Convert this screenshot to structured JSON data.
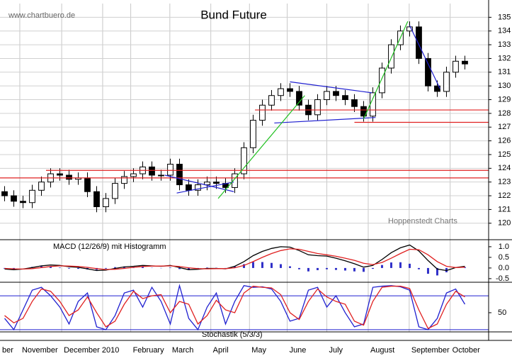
{
  "chart_data": [
    {
      "type": "candlestick",
      "title": "Bund Future",
      "source": "www.chartbuero.de",
      "annotation": "Hoppenstedt Charts",
      "x": [
        0,
        1,
        2,
        3,
        4,
        5,
        6,
        7,
        8,
        9,
        10,
        11,
        12,
        13,
        14,
        15,
        16,
        17,
        18,
        19,
        20,
        21,
        22,
        23,
        24,
        25,
        26,
        27,
        28,
        29,
        30,
        31,
        32,
        33,
        34,
        35,
        36,
        37,
        38,
        39,
        40,
        41,
        42,
        43,
        44,
        45,
        46,
        47,
        48,
        49,
        50
      ],
      "open": [
        122.3,
        122.0,
        121.6,
        121.5,
        122.4,
        123.0,
        123.6,
        123.5,
        123.2,
        123.3,
        122.3,
        121.2,
        121.8,
        122.9,
        123.4,
        123.6,
        124.1,
        123.5,
        123.5,
        124.3,
        122.8,
        122.4,
        122.8,
        123.0,
        122.9,
        122.6,
        123.6,
        125.5,
        127.5,
        128.6,
        129.3,
        129.8,
        129.6,
        128.6,
        127.9,
        129.0,
        129.6,
        129.3,
        129.0,
        128.5,
        127.8,
        129.5,
        131.3,
        133.0,
        134.0,
        134.3,
        132.0,
        130.0,
        129.6,
        131.0,
        131.8
      ],
      "high": [
        122.7,
        122.4,
        122.0,
        122.8,
        123.4,
        124.0,
        124.0,
        123.9,
        123.7,
        123.7,
        122.7,
        122.2,
        123.3,
        123.8,
        124.0,
        124.5,
        124.5,
        123.9,
        124.7,
        124.7,
        123.2,
        123.2,
        123.4,
        123.4,
        123.3,
        124.0,
        125.9,
        127.9,
        129.0,
        129.7,
        130.2,
        130.2,
        130.0,
        129.0,
        129.4,
        130.0,
        130.0,
        129.7,
        129.4,
        128.9,
        129.9,
        131.7,
        133.4,
        134.4,
        134.7,
        134.7,
        132.4,
        130.4,
        131.4,
        132.2,
        132.2
      ],
      "low": [
        121.6,
        121.2,
        121.1,
        121.1,
        122.0,
        122.6,
        123.1,
        122.8,
        122.8,
        121.9,
        120.8,
        120.8,
        121.4,
        122.5,
        123.0,
        123.2,
        123.1,
        123.1,
        123.1,
        122.4,
        122.0,
        122.0,
        122.4,
        122.5,
        122.2,
        122.2,
        123.2,
        125.1,
        127.1,
        128.2,
        128.9,
        129.2,
        128.2,
        127.5,
        127.5,
        128.6,
        128.9,
        128.6,
        128.1,
        127.4,
        127.4,
        129.1,
        130.9,
        132.6,
        133.6,
        131.6,
        129.6,
        129.2,
        129.2,
        130.6,
        131.2
      ],
      "close": [
        122.0,
        121.6,
        121.5,
        122.4,
        123.0,
        123.6,
        123.5,
        123.2,
        123.3,
        122.3,
        121.2,
        121.8,
        122.9,
        123.4,
        123.6,
        124.1,
        123.5,
        123.5,
        124.3,
        122.8,
        122.4,
        122.8,
        123.0,
        122.9,
        122.6,
        123.6,
        125.5,
        127.5,
        128.6,
        129.3,
        129.8,
        129.6,
        128.6,
        127.9,
        129.0,
        129.6,
        129.3,
        129.0,
        128.5,
        127.8,
        129.5,
        131.3,
        133.0,
        134.0,
        134.3,
        132.0,
        130.0,
        129.6,
        131.0,
        131.8,
        131.6
      ],
      "xlim": [
        -0.5,
        52.58
      ],
      "ylim": [
        118.8,
        136
      ],
      "yticks": [
        120,
        121,
        122,
        123,
        124,
        125,
        126,
        127,
        128,
        129,
        130,
        131,
        132,
        133,
        134,
        135
      ],
      "grid": true,
      "trendlines": [
        {
          "color": "#e02020",
          "x": [
            4.5,
            52.58
          ],
          "y": [
            123.85,
            123.85
          ]
        },
        {
          "color": "#e02020",
          "x": [
            -0.5,
            52.58
          ],
          "y": [
            123.3,
            123.3
          ]
        },
        {
          "color": "#e02020",
          "x": [
            27.2,
            52.58
          ],
          "y": [
            128.25,
            128.25
          ]
        },
        {
          "color": "#e02020",
          "x": [
            38,
            52.58
          ],
          "y": [
            127.35,
            127.35
          ]
        },
        {
          "color": "#2020d0",
          "x": [
            17.4,
            24.9
          ],
          "y": [
            123.5,
            122.3
          ]
        },
        {
          "color": "#2020d0",
          "x": [
            18.7,
            24.9
          ],
          "y": [
            122.2,
            123.0
          ]
        },
        {
          "color": "#2020d0",
          "x": [
            31.0,
            39.9
          ],
          "y": [
            130.3,
            129.5
          ]
        },
        {
          "color": "#2020d0",
          "x": [
            29.3,
            40.3
          ],
          "y": [
            127.3,
            127.7
          ]
        },
        {
          "color": "#2020d0",
          "x": [
            44.0,
            47.3
          ],
          "y": [
            134.4,
            129.8
          ]
        },
        {
          "color": "#20c020",
          "x": [
            23.2,
            32.6
          ],
          "y": [
            121.8,
            129.3
          ]
        },
        {
          "color": "#20c020",
          "x": [
            39.0,
            43.8
          ],
          "y": [
            127.6,
            134.7
          ]
        }
      ]
    },
    {
      "type": "macd",
      "title": "MACD (12/26/9) mit Histogramm",
      "ylim": [
        -0.67,
        1.33
      ],
      "yticks": [
        {
          "value": 1,
          "label": "1.0"
        },
        0.5,
        {
          "value": 0,
          "label": "0.0"
        },
        -0.5
      ],
      "series": [
        {
          "color": "#000000",
          "values": [
            -0.05,
            -0.08,
            -0.05,
            0.02,
            0.1,
            0.14,
            0.12,
            0.06,
            0.03,
            -0.04,
            -0.12,
            -0.1,
            -0.02,
            0.05,
            0.08,
            0.12,
            0.1,
            0.08,
            0.12,
            0.02,
            -0.08,
            -0.06,
            -0.02,
            -0.02,
            -0.04,
            0.08,
            0.3,
            0.58,
            0.78,
            0.92,
            1.0,
            0.98,
            0.82,
            0.62,
            0.58,
            0.56,
            0.46,
            0.34,
            0.2,
            0.04,
            0.12,
            0.4,
            0.72,
            0.95,
            1.08,
            0.8,
            0.35,
            -0.05,
            -0.12,
            0.02,
            0.08
          ]
        },
        {
          "color": "#e02020",
          "values": [
            -0.02,
            -0.04,
            -0.05,
            -0.03,
            0.02,
            0.07,
            0.1,
            0.09,
            0.07,
            0.03,
            -0.03,
            -0.07,
            -0.06,
            -0.02,
            0.03,
            0.07,
            0.09,
            0.09,
            0.1,
            0.07,
            0.01,
            -0.03,
            -0.04,
            -0.03,
            -0.03,
            0.01,
            0.12,
            0.3,
            0.5,
            0.68,
            0.82,
            0.9,
            0.88,
            0.78,
            0.68,
            0.62,
            0.55,
            0.46,
            0.36,
            0.22,
            0.16,
            0.26,
            0.46,
            0.68,
            0.88,
            0.86,
            0.62,
            0.3,
            0.08,
            0.02,
            0.04
          ]
        }
      ],
      "histogram": {
        "color": "#3030c8",
        "values": [
          -0.03,
          -0.04,
          0.0,
          0.05,
          0.08,
          0.07,
          0.02,
          -0.03,
          -0.04,
          -0.07,
          -0.09,
          -0.03,
          0.04,
          0.07,
          0.05,
          0.05,
          0.01,
          -0.01,
          0.02,
          -0.05,
          -0.09,
          -0.03,
          0.02,
          0.01,
          -0.01,
          0.07,
          0.18,
          0.28,
          0.28,
          0.24,
          0.18,
          0.08,
          -0.06,
          -0.16,
          -0.1,
          -0.06,
          -0.09,
          -0.12,
          -0.16,
          -0.18,
          -0.04,
          0.14,
          0.26,
          0.27,
          0.2,
          -0.06,
          -0.27,
          -0.35,
          -0.2,
          0.0,
          0.04
        ]
      }
    },
    {
      "type": "stochastic",
      "title": "Stochastik (5/3/3)",
      "ylim": [
        16,
        104
      ],
      "yticks": [
        50
      ],
      "hlines": [
        20,
        80
      ],
      "hline_color": "#2020d0",
      "series": [
        {
          "color": "#2020d0",
          "values": [
            40,
            20,
            55,
            90,
            95,
            80,
            60,
            30,
            70,
            85,
            25,
            20,
            45,
            85,
            90,
            60,
            95,
            70,
            30,
            98,
            40,
            20,
            60,
            85,
            30,
            70,
            98,
            95,
            96,
            92,
            70,
            35,
            40,
            90,
            95,
            60,
            80,
            50,
            25,
            30,
            95,
            97,
            98,
            96,
            90,
            25,
            20,
            40,
            85,
            92,
            65
          ]
        },
        {
          "color": "#e02020",
          "values": [
            45,
            32,
            40,
            70,
            92,
            88,
            70,
            45,
            55,
            78,
            50,
            25,
            35,
            65,
            88,
            75,
            80,
            82,
            50,
            70,
            65,
            30,
            45,
            72,
            55,
            50,
            85,
            97,
            95,
            94,
            82,
            50,
            38,
            70,
            92,
            78,
            70,
            65,
            35,
            28,
            70,
            95,
            97,
            97,
            93,
            55,
            22,
            30,
            65,
            88,
            78
          ]
        }
      ],
      "xticks": [
        {
          "value": -2.3,
          "label": "ber"
        },
        {
          "value": 1.65,
          "label": "November"
        },
        {
          "value": 6.2,
          "label": "December 2010"
        },
        {
          "value": 10.65
        },
        {
          "value": 13.7,
          "label": "February"
        },
        {
          "value": 17.95,
          "label": "March"
        },
        {
          "value": 22.4,
          "label": "April"
        },
        {
          "value": 26.6,
          "label": "May"
        },
        {
          "value": 30.7,
          "label": "June"
        },
        {
          "value": 35.0,
          "label": "July"
        },
        {
          "value": 39.5,
          "label": "August"
        },
        {
          "value": 43.95,
          "label": "September"
        },
        {
          "value": 48.4,
          "label": "October"
        }
      ]
    }
  ]
}
